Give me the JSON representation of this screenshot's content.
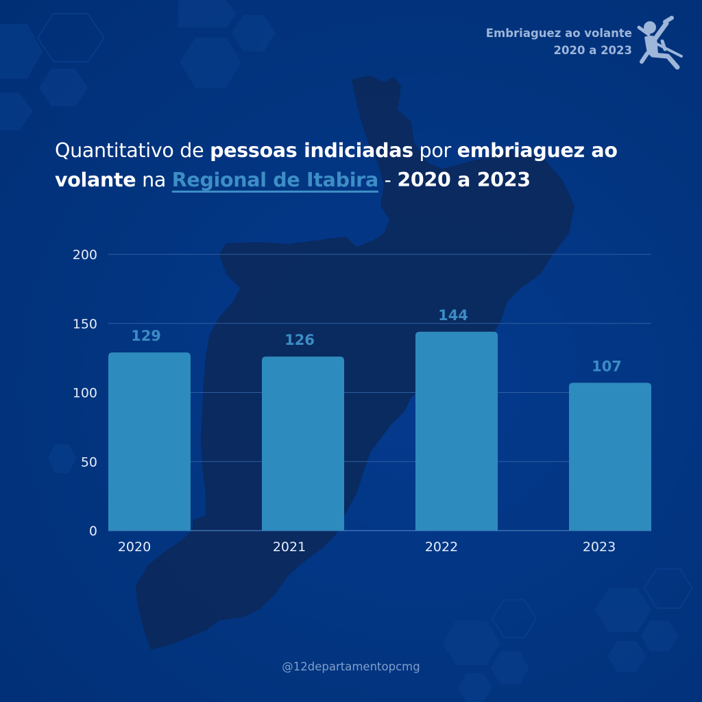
{
  "header_badge": {
    "line1": "Embriaguez ao volante",
    "line2": "2020 a 2023",
    "icon": "seatbelt-person-icon"
  },
  "title": {
    "parts": [
      {
        "text": "Quantitativo de ",
        "style": "light"
      },
      {
        "text": "pessoas indiciadas",
        "style": "bold"
      },
      {
        "text": " por ",
        "style": "light"
      },
      {
        "text": "embriaguez ao volante",
        "style": "bold"
      },
      {
        "text": " na ",
        "style": "light"
      },
      {
        "text": "Regional de Itabira",
        "style": "highlight"
      },
      {
        "text": " - ",
        "style": "light"
      },
      {
        "text": "2020 a 2023",
        "style": "bold"
      }
    ]
  },
  "colors": {
    "background": "#023484",
    "map_silhouette": "#0b2a5e",
    "bar": "#2e8bbd",
    "value_label": "#3c8cc4",
    "highlight": "#3d8ec6",
    "badge_text": "#9db6da"
  },
  "chart_data": {
    "type": "bar",
    "title": "Quantitativo de pessoas indiciadas por embriaguez ao volante na Regional de Itabira - 2020 a 2023",
    "categories": [
      "2020",
      "2021",
      "2022",
      "2023"
    ],
    "values": [
      129,
      126,
      144,
      107
    ],
    "data_labels": [
      "129",
      "126",
      "144",
      "107"
    ],
    "xlabel": "",
    "ylabel": "",
    "ylim": [
      0,
      200
    ],
    "yticks": [
      0,
      50,
      100,
      150,
      200
    ],
    "ytick_labels": [
      "0",
      "50",
      "100",
      "150",
      "200"
    ],
    "grid": true,
    "legend": "none"
  },
  "footer": {
    "handle": "@12departamentopcmg"
  }
}
